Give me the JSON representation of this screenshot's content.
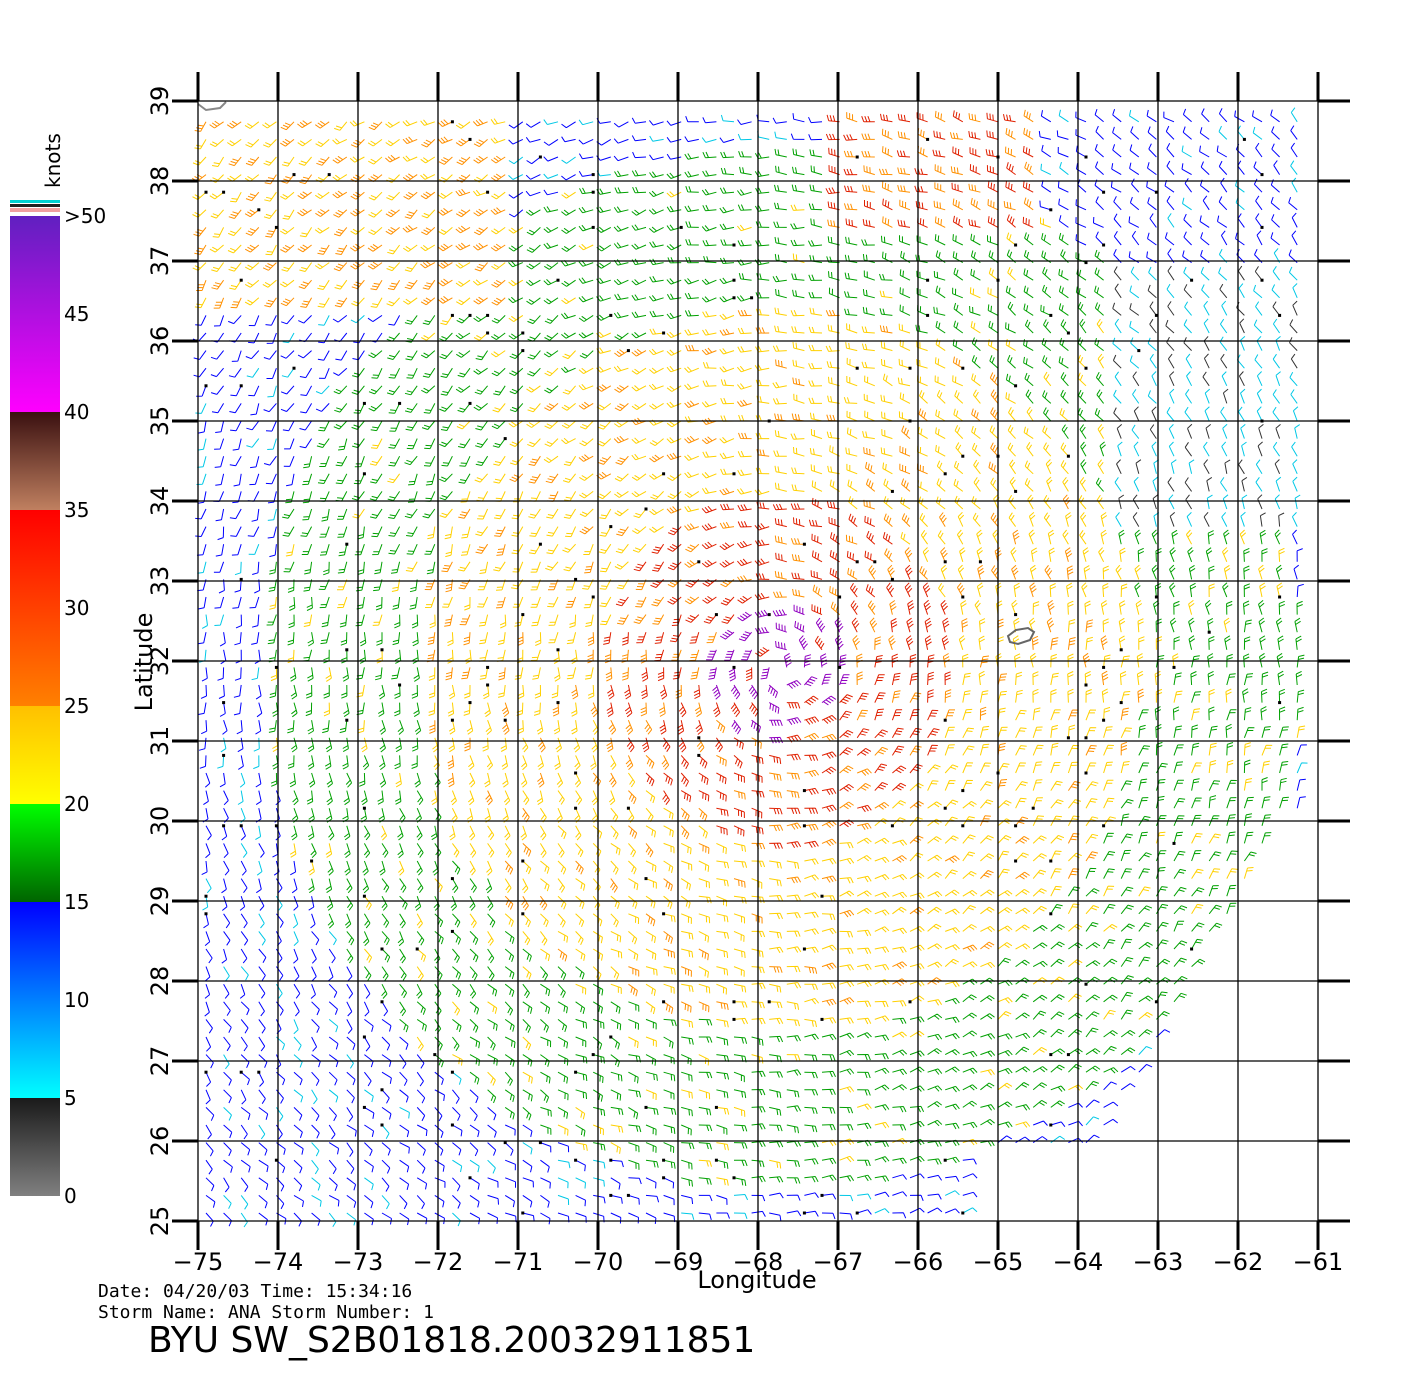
{
  "chart_data": {
    "type": "scatter",
    "subtype": "wind-barb map",
    "xlabel": "Longitude",
    "ylabel": "Latitude",
    "xlim": [
      -75,
      -61
    ],
    "ylim": [
      25,
      39
    ],
    "x_ticks": [
      -75,
      -74,
      -73,
      -72,
      -71,
      -70,
      -69,
      -68,
      -67,
      -66,
      -65,
      -64,
      -63,
      -62,
      -61
    ],
    "y_ticks": [
      25,
      26,
      27,
      28,
      29,
      30,
      31,
      32,
      33,
      34,
      35,
      36,
      37,
      38,
      39
    ],
    "x_tick_labels": [
      "−75",
      "−74",
      "−73",
      "−72",
      "−71",
      "−70",
      "−69",
      "−68",
      "−67",
      "−66",
      "−65",
      "−64",
      "−63",
      "−62",
      "−61"
    ],
    "y_tick_labels": [
      "25",
      "26",
      "27",
      "28",
      "29",
      "30",
      "31",
      "32",
      "33",
      "34",
      "35",
      "36",
      "37",
      "38",
      "39"
    ],
    "grid": true,
    "storm_center": {
      "lon": -67.7,
      "lat": 31.9
    },
    "colorbar": {
      "title": "knots",
      "labels": [
        "0",
        "5",
        "10",
        "15",
        "20",
        "25",
        "30",
        "35",
        "40",
        "45",
        ">50"
      ],
      "bands": [
        {
          "from": 0,
          "to": 5,
          "colors": [
            "#808080",
            "#1a1a1a"
          ]
        },
        {
          "from": 5,
          "to": 15,
          "colors": [
            "#00ffff",
            "#0000ff"
          ]
        },
        {
          "from": 15,
          "to": 20,
          "colors": [
            "#006400",
            "#00ff00"
          ]
        },
        {
          "from": 20,
          "to": 25,
          "colors": [
            "#ffff00",
            "#ffc000"
          ]
        },
        {
          "from": 25,
          "to": 35,
          "colors": [
            "#ff8000",
            "#ff0000"
          ]
        },
        {
          "from": 35,
          "to": 40,
          "colors": [
            "#c08060",
            "#3a1010"
          ]
        },
        {
          "from": 40,
          "to": 50,
          "colors": [
            "#ff00ff",
            "#6020c0"
          ]
        }
      ]
    },
    "barb_colors": {
      "calm": "#333333",
      "light": "#00c8e6",
      "moderate": "#0000ff",
      "fresh": "#00a000",
      "strong": "#ffd000",
      "gale": "#ff9000",
      "storm": "#e02000",
      "violent": "#9000c0"
    }
  },
  "info": {
    "date_line": "Date: 04/20/03   Time: 15:34:16",
    "storm_line": "Storm  Name: ANA   Storm  Number: 1",
    "file_title": "BYU  SW_S2B01818.20032911851"
  }
}
